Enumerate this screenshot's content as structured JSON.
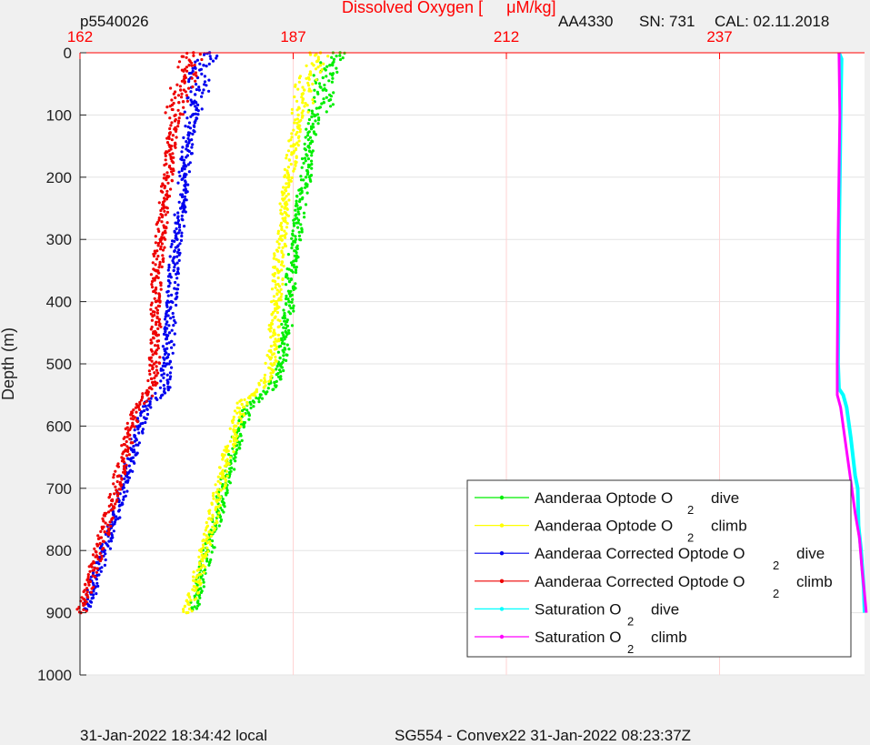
{
  "header": {
    "left_id": "p5540026",
    "title_prefix": "Dissolved Oxygen [",
    "title_unit": "μM/kg]",
    "sensor": "AA4330",
    "serial": "SN: 731",
    "calibration": "CAL: 02.11.2018"
  },
  "footer": {
    "local_time": "31-Jan-2022 18:34:42 local",
    "mission": "SG554 - Convex22 31-Jan-2022 08:23:37Z"
  },
  "colors": {
    "background": "#f0f0f0",
    "plot_bg": "#ffffff",
    "top_axis": "#ff0000",
    "green": "#00ee00",
    "yellow": "#ffff00",
    "blue": "#0000ee",
    "red": "#ee0000",
    "cyan": "#00ffff",
    "magenta": "#ff00ff"
  },
  "chart_data": {
    "type": "scatter",
    "title": "Dissolved Oxygen [ μM/kg]",
    "xlabel": "Dissolved Oxygen [ μM/kg]",
    "ylabel": "Depth (m)",
    "xlim": [
      162,
      254
    ],
    "ylim": [
      1000,
      0
    ],
    "x_ticks": [
      "162",
      "187",
      "212",
      "237"
    ],
    "y_ticks": [
      "0",
      "100",
      "200",
      "300",
      "400",
      "500",
      "600",
      "700",
      "800",
      "900",
      "1000"
    ],
    "grid": true,
    "legend_position": "bottom-right",
    "series": [
      {
        "name": "Aanderaa Optode O",
        "name_sub": "2",
        "name_suffix": "dive",
        "color": "#00ee00",
        "style": "dots",
        "points": [
          [
            192.5,
            0
          ],
          [
            191.3,
            20
          ],
          [
            190.5,
            40
          ],
          [
            190.5,
            60
          ],
          [
            190.6,
            80
          ],
          [
            189.5,
            100
          ],
          [
            188.8,
            150
          ],
          [
            188.5,
            200
          ],
          [
            187.8,
            250
          ],
          [
            187.3,
            300
          ],
          [
            186.8,
            350
          ],
          [
            186.5,
            400
          ],
          [
            186.2,
            450
          ],
          [
            185.6,
            500
          ],
          [
            184.8,
            530
          ],
          [
            183.8,
            548
          ],
          [
            182.3,
            560
          ],
          [
            181.4,
            580
          ],
          [
            180.4,
            620
          ],
          [
            179.7,
            660
          ],
          [
            178.8,
            700
          ],
          [
            177.9,
            760
          ],
          [
            177.0,
            800
          ],
          [
            176.3,
            840
          ],
          [
            175.7,
            870
          ],
          [
            175.2,
            895
          ]
        ]
      },
      {
        "name": "Aanderaa Optode O",
        "name_sub": "2",
        "name_suffix": "climb",
        "color": "#ffff00",
        "style": "dots",
        "points": [
          [
            190.2,
            0
          ],
          [
            189.4,
            20
          ],
          [
            188.8,
            40
          ],
          [
            188.3,
            60
          ],
          [
            188.1,
            80
          ],
          [
            187.6,
            100
          ],
          [
            187.0,
            150
          ],
          [
            186.5,
            200
          ],
          [
            186.0,
            250
          ],
          [
            185.6,
            300
          ],
          [
            185.2,
            350
          ],
          [
            185.0,
            400
          ],
          [
            184.8,
            450
          ],
          [
            184.4,
            500
          ],
          [
            183.6,
            530
          ],
          [
            182.3,
            550
          ],
          [
            181.0,
            565
          ],
          [
            180.3,
            600
          ],
          [
            179.4,
            640
          ],
          [
            178.8,
            680
          ],
          [
            178.0,
            720
          ],
          [
            177.2,
            770
          ],
          [
            176.4,
            810
          ],
          [
            175.7,
            850
          ],
          [
            175.0,
            880
          ],
          [
            174.5,
            900
          ]
        ]
      },
      {
        "name": "Aanderaa Corrected Optode O",
        "name_sub": "2",
        "name_suffix": "dive",
        "color": "#0000ee",
        "style": "dots",
        "points": [
          [
            177.2,
            0
          ],
          [
            176.5,
            20
          ],
          [
            175.8,
            40
          ],
          [
            176.0,
            60
          ],
          [
            175.6,
            80
          ],
          [
            175.2,
            100
          ],
          [
            174.6,
            150
          ],
          [
            174.2,
            200
          ],
          [
            173.8,
            250
          ],
          [
            173.4,
            300
          ],
          [
            173.0,
            350
          ],
          [
            172.7,
            400
          ],
          [
            172.5,
            450
          ],
          [
            172.2,
            500
          ],
          [
            171.9,
            540
          ],
          [
            170.9,
            555
          ],
          [
            169.7,
            568
          ],
          [
            169.0,
            600
          ],
          [
            168.2,
            640
          ],
          [
            167.4,
            680
          ],
          [
            166.6,
            720
          ],
          [
            165.8,
            760
          ],
          [
            164.9,
            800
          ],
          [
            164.0,
            840
          ],
          [
            163.3,
            870
          ],
          [
            162.8,
            895
          ]
        ]
      },
      {
        "name": "Aanderaa Corrected Optode O",
        "name_sub": "2",
        "name_suffix": "climb",
        "color": "#ee0000",
        "style": "dots",
        "points": [
          [
            175.3,
            0
          ],
          [
            174.8,
            20
          ],
          [
            174.4,
            40
          ],
          [
            173.8,
            60
          ],
          [
            173.6,
            80
          ],
          [
            173.2,
            100
          ],
          [
            172.7,
            150
          ],
          [
            172.3,
            200
          ],
          [
            171.8,
            250
          ],
          [
            171.4,
            300
          ],
          [
            171.0,
            350
          ],
          [
            170.9,
            400
          ],
          [
            170.9,
            450
          ],
          [
            170.7,
            500
          ],
          [
            170.5,
            530
          ],
          [
            169.9,
            550
          ],
          [
            168.8,
            568
          ],
          [
            168.1,
            600
          ],
          [
            167.3,
            640
          ],
          [
            166.6,
            680
          ],
          [
            165.8,
            720
          ],
          [
            164.9,
            770
          ],
          [
            164.0,
            810
          ],
          [
            163.2,
            850
          ],
          [
            162.6,
            880
          ],
          [
            162.1,
            900
          ]
        ]
      },
      {
        "name": "Saturation O",
        "name_sub": "2",
        "name_suffix": "dive",
        "color": "#00ffff",
        "style": "line",
        "points": [
          [
            251.0,
            0
          ],
          [
            251.3,
            10
          ],
          [
            251.2,
            100
          ],
          [
            251.0,
            300
          ],
          [
            250.9,
            500
          ],
          [
            251.0,
            540
          ],
          [
            251.5,
            550
          ],
          [
            251.9,
            570
          ],
          [
            252.4,
            620
          ],
          [
            252.9,
            680
          ],
          [
            253.2,
            700
          ],
          [
            253.3,
            760
          ],
          [
            253.6,
            800
          ],
          [
            253.9,
            860
          ],
          [
            254.0,
            900
          ]
        ]
      },
      {
        "name": "Saturation O",
        "name_sub": "2",
        "name_suffix": "climb",
        "color": "#ff00ff",
        "style": "line",
        "points": [
          [
            251.0,
            0
          ],
          [
            251.1,
            100
          ],
          [
            250.9,
            300
          ],
          [
            250.8,
            500
          ],
          [
            250.8,
            550
          ],
          [
            251.2,
            570
          ],
          [
            251.7,
            620
          ],
          [
            252.3,
            680
          ],
          [
            252.9,
            740
          ],
          [
            253.4,
            780
          ],
          [
            253.7,
            830
          ],
          [
            254.0,
            870
          ],
          [
            254.2,
            900
          ]
        ]
      }
    ]
  }
}
